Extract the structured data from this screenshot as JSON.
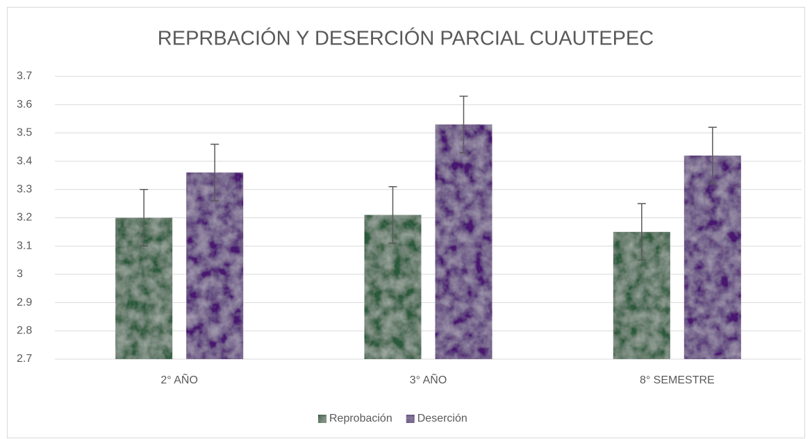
{
  "chart_data": {
    "type": "bar",
    "title": "REPRBACIÓN Y DESERCIÓN PARCIAL CUAUTEPEC",
    "categories": [
      "2° AÑO",
      "3° AÑO",
      "8° SEMESTRE"
    ],
    "series": [
      {
        "name": "Reprobación",
        "color": "#2c5a3a",
        "values": [
          3.2,
          3.21,
          3.15
        ],
        "errors": [
          0.1,
          0.1,
          0.1
        ]
      },
      {
        "name": "Deserción",
        "color": "#4a1470",
        "values": [
          3.36,
          3.53,
          3.42
        ],
        "errors": [
          0.1,
          0.1,
          0.1
        ]
      }
    ],
    "ylim": [
      2.7,
      3.7
    ],
    "yticks": [
      2.7,
      2.8,
      2.9,
      3,
      3.1,
      3.2,
      3.3,
      3.4,
      3.5,
      3.6,
      3.7
    ],
    "grid": true,
    "legend": "bottom"
  }
}
